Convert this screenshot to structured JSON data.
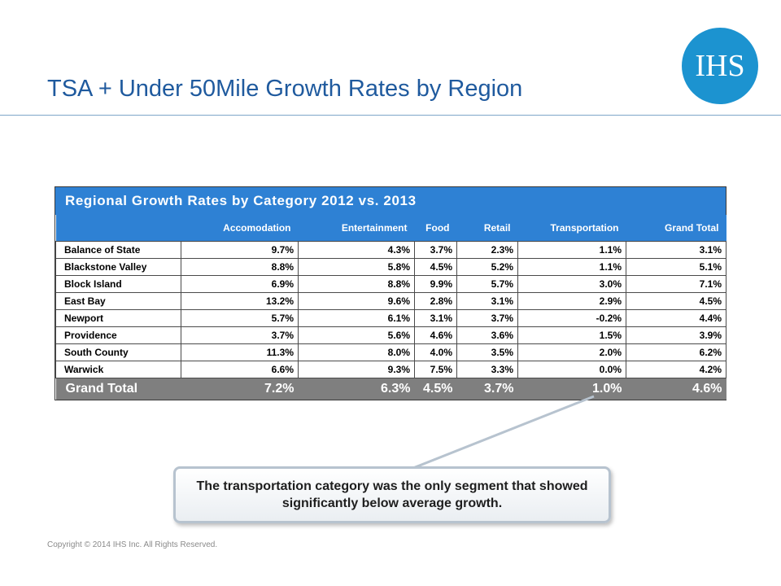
{
  "slide": {
    "title": "TSA + Under 50Mile Growth Rates by Region",
    "logo_text": "IHS",
    "copyright": "Copyright © 2014 IHS Inc. All Rights Reserved."
  },
  "table": {
    "caption": "Regional Growth Rates by Category 2012 vs. 2013",
    "columns": [
      "",
      "Accomodation",
      "Entertainment",
      "Food",
      "Retail",
      "Transportation",
      "Grand Total"
    ],
    "rows": [
      [
        "Balance of State",
        "9.7%",
        "4.3%",
        "3.7%",
        "2.3%",
        "1.1%",
        "3.1%"
      ],
      [
        "Blackstone Valley",
        "8.8%",
        "5.8%",
        "4.5%",
        "5.2%",
        "1.1%",
        "5.1%"
      ],
      [
        "Block Island",
        "6.9%",
        "8.8%",
        "9.9%",
        "5.7%",
        "3.0%",
        "7.1%"
      ],
      [
        "East Bay",
        "13.2%",
        "9.6%",
        "2.8%",
        "3.1%",
        "2.9%",
        "4.5%"
      ],
      [
        "Newport",
        "5.7%",
        "6.1%",
        "3.1%",
        "3.7%",
        "-0.2%",
        "4.4%"
      ],
      [
        "Providence",
        "3.7%",
        "5.6%",
        "4.6%",
        "3.6%",
        "1.5%",
        "3.9%"
      ],
      [
        "South County",
        "11.3%",
        "8.0%",
        "4.0%",
        "3.5%",
        "2.0%",
        "6.2%"
      ],
      [
        "Warwick",
        "6.6%",
        "9.3%",
        "7.5%",
        "3.3%",
        "0.0%",
        "4.2%"
      ]
    ],
    "total": [
      "Grand Total",
      "7.2%",
      "6.3%",
      "4.5%",
      "3.7%",
      "1.0%",
      "4.6%"
    ]
  },
  "callout": {
    "text": "The transportation category was the only segment that showed significantly below average growth."
  },
  "colors": {
    "title": "#1f5a9e",
    "table_header": "#2e81d4",
    "total_row": "#7f7f7f",
    "logo": "#1c93d0"
  }
}
